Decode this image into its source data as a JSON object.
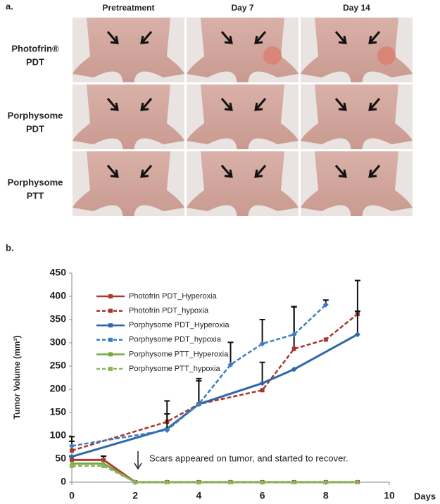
{
  "panel_a": {
    "label": "a.",
    "columns": [
      "Pretreatment",
      "Day 7",
      "Day 14"
    ],
    "rows": [
      {
        "line1": "Photofrin®",
        "line2": "PDT"
      },
      {
        "line1": "Porphysome",
        "line2": "PDT"
      },
      {
        "line1": "Porphysome",
        "line2": "PTT"
      }
    ]
  },
  "chart_data": {
    "type": "line",
    "panel_label": "b.",
    "y_label": "Tumor Volume (mm³)",
    "x_label": "Days",
    "annotation": "Scars appeared on tumor, and started to recover.",
    "xlim": [
      0,
      10
    ],
    "xticks": [
      0,
      2,
      4,
      6,
      8,
      10
    ],
    "ylim": [
      0,
      450
    ],
    "yticks": [
      0,
      50,
      100,
      150,
      200,
      250,
      300,
      350,
      400,
      450
    ],
    "series": [
      {
        "name": "Photofrin PDT_Hyperoxia",
        "color": "#b0392e",
        "dash": false,
        "marker": "square",
        "x": [
          0,
          1,
          2,
          3,
          4,
          5,
          6,
          7,
          8,
          9
        ],
        "values": [
          48,
          48,
          0,
          0,
          0,
          0,
          0,
          0,
          0,
          0
        ],
        "errors": [
          8,
          8,
          null,
          null,
          null,
          null,
          null,
          null,
          null,
          null
        ]
      },
      {
        "name": "Photofrin PDT_hypoxia",
        "color": "#a8362c",
        "dash": true,
        "marker": "square",
        "x": [
          0,
          3,
          4,
          6,
          7,
          8,
          9
        ],
        "values": [
          68,
          130,
          168,
          198,
          287,
          307,
          362
        ],
        "errors": [
          20,
          45,
          50,
          null,
          90,
          null,
          72
        ]
      },
      {
        "name": "Porphysome PDT_Hyperoxia",
        "color": "#2f68a8",
        "dash": false,
        "marker": "diamond",
        "x": [
          0,
          3,
          4,
          6,
          7,
          9
        ],
        "values": [
          55,
          115,
          168,
          213,
          243,
          318
        ],
        "errors": [
          null,
          null,
          null,
          45,
          null,
          50
        ]
      },
      {
        "name": "Porphysome PDT_hypoxia",
        "color": "#3b7cc4",
        "dash": true,
        "marker": "diamond",
        "x": [
          0,
          3,
          4,
          5,
          6,
          7,
          8
        ],
        "values": [
          78,
          112,
          168,
          253,
          298,
          318,
          382
        ],
        "errors": [
          20,
          35,
          55,
          48,
          52,
          60,
          10
        ]
      },
      {
        "name": "Porphysome PTT_Hyperoxia",
        "color": "#78a845",
        "dash": false,
        "marker": "triangle",
        "x": [
          0,
          1,
          2,
          3,
          4,
          5,
          6,
          7,
          8,
          9
        ],
        "values": [
          40,
          40,
          0,
          0,
          0,
          0,
          0,
          0,
          0,
          0
        ]
      },
      {
        "name": "Porphysome PTT_hypoxia",
        "color": "#8db65a",
        "dash": true,
        "marker": "triangle",
        "x": [
          0,
          1,
          2,
          3,
          4,
          5,
          6,
          7,
          8,
          9
        ],
        "values": [
          35,
          35,
          0,
          0,
          0,
          0,
          0,
          0,
          0,
          0
        ]
      }
    ]
  }
}
